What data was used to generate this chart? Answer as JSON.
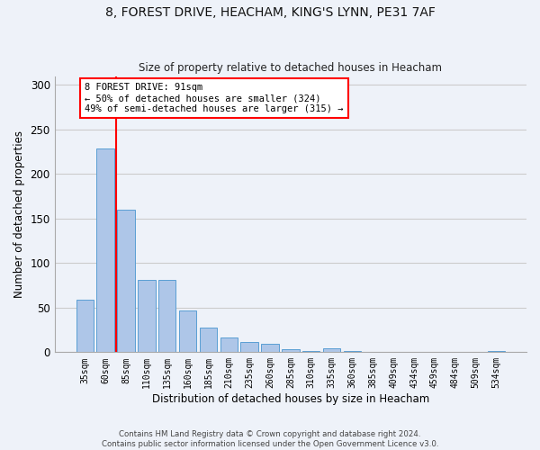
{
  "title_line1": "8, FOREST DRIVE, HEACHAM, KING'S LYNN, PE31 7AF",
  "title_line2": "Size of property relative to detached houses in Heacham",
  "xlabel": "Distribution of detached houses by size in Heacham",
  "ylabel": "Number of detached properties",
  "footer_line1": "Contains HM Land Registry data © Crown copyright and database right 2024.",
  "footer_line2": "Contains public sector information licensed under the Open Government Licence v3.0.",
  "categories": [
    "35sqm",
    "60sqm",
    "85sqm",
    "110sqm",
    "135sqm",
    "160sqm",
    "185sqm",
    "210sqm",
    "235sqm",
    "260sqm",
    "285sqm",
    "310sqm",
    "335sqm",
    "360sqm",
    "385sqm",
    "409sqm",
    "434sqm",
    "459sqm",
    "484sqm",
    "509sqm",
    "534sqm"
  ],
  "bar_values": [
    59,
    229,
    160,
    81,
    81,
    47,
    28,
    16,
    11,
    9,
    3,
    1,
    4,
    1,
    0,
    0,
    0,
    0,
    0,
    0,
    1
  ],
  "bar_color": "#aec6e8",
  "bar_edge_color": "#5a9fd4",
  "vline_x_idx": 1.5,
  "vline_color": "red",
  "annotation_title": "8 FOREST DRIVE: 91sqm",
  "annotation_line2": "← 50% of detached houses are smaller (324)",
  "annotation_line3": "49% of semi-detached houses are larger (315) →",
  "annotation_box_color": "red",
  "annotation_facecolor": "white",
  "ylim": [
    0,
    310
  ],
  "yticks": [
    0,
    50,
    100,
    150,
    200,
    250,
    300
  ],
  "grid_color": "#cccccc",
  "background_color": "#eef2f9"
}
